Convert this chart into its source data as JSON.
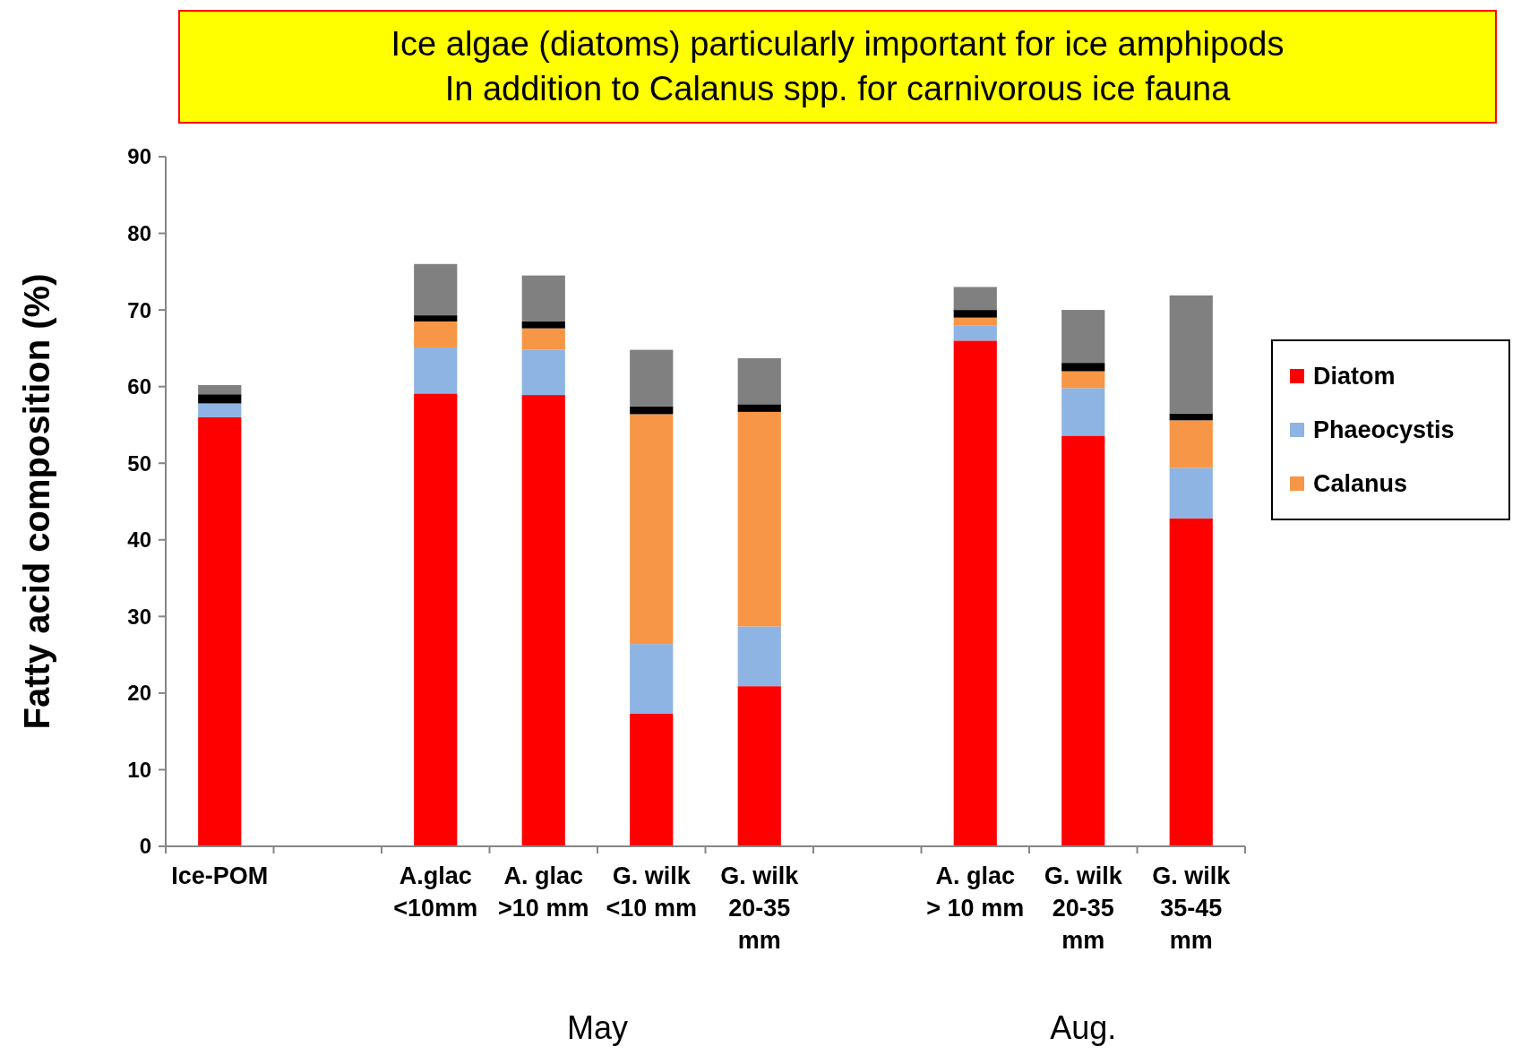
{
  "chart_data": {
    "type": "bar",
    "stacked": true,
    "ylabel": "Fatty acid composition (%)",
    "categories": [
      "Ice-POM",
      null,
      "A.glac <10mm",
      "A. glac >10 mm",
      "G. wilk <10 mm",
      "G. wilk 20-35 mm",
      null,
      "A. glac > 10 mm",
      "G. wilk 20-35 mm",
      "G. wilk 35-45 mm"
    ],
    "series": [
      {
        "name": "Diatom",
        "color": "#ff0000",
        "values": [
          56,
          null,
          59.1,
          58.9,
          17.3,
          20.9,
          null,
          66,
          53.6,
          42.8
        ]
      },
      {
        "name": "Phaeocystis",
        "color": "#8eb4e3",
        "values": [
          1.8,
          null,
          6,
          5.9,
          9.1,
          7.8,
          null,
          2,
          6.2,
          6.6
        ]
      },
      {
        "name": "Calanus",
        "color": "#f79646",
        "values": [
          0,
          null,
          3.4,
          2.8,
          30,
          28,
          null,
          1,
          2.2,
          6.2
        ]
      },
      {
        "color": "#000000",
        "values": [
          1.2,
          null,
          0.8,
          0.9,
          1,
          1,
          null,
          1,
          1.1,
          0.9
        ]
      },
      {
        "color": "#808080",
        "values": [
          1.2,
          null,
          6.7,
          6,
          7.4,
          6,
          null,
          3,
          6.9,
          15.4
        ]
      }
    ],
    "ylim": [
      0,
      90
    ],
    "yticks": [
      0,
      10,
      20,
      30,
      40,
      50,
      60,
      70,
      80,
      90
    ],
    "grid": false,
    "legend": "right",
    "annotations": [
      "Ice algae (diatoms) particularly important for ice amphipods",
      "In addition to Calanus spp. for carnivorous ice fauna",
      "May",
      "Aug."
    ]
  }
}
